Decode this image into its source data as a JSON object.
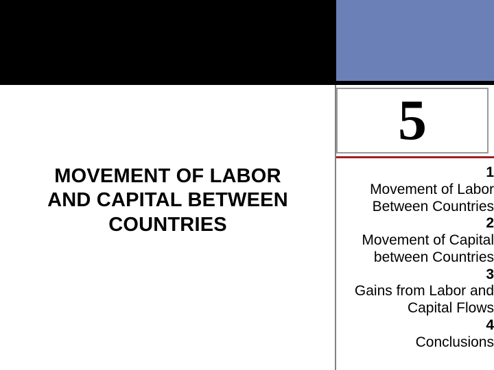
{
  "colors": {
    "top_left_bg": "#000000",
    "top_right_bg": "#6b80b7",
    "black_rule": "#000000",
    "chapter_box_border": "#999999",
    "chapter_box_bg": "#ffffff",
    "chapter_number_color": "#000000",
    "red_rule": "#a01f1f",
    "divider": "#808080",
    "title_color": "#000000",
    "toc_color": "#000000"
  },
  "chapter_number": "5",
  "title_lines": [
    "MOVEMENT OF LABOR",
    "AND CAPITAL BETWEEN",
    "COUNTRIES"
  ],
  "toc": [
    {
      "num": "1",
      "text": "Movement of Labor Between Countries"
    },
    {
      "num": "2",
      "text": "Movement of Capital between Countries"
    },
    {
      "num": "3",
      "text": "Gains from Labor and Capital Flows"
    },
    {
      "num": "4",
      "text": "Conclusions"
    }
  ]
}
